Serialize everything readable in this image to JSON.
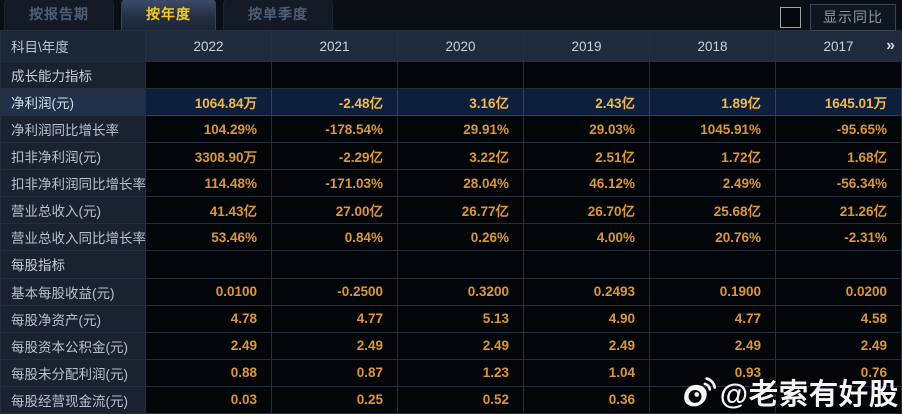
{
  "tabs": [
    {
      "id": "report-period",
      "label": "按报告期",
      "active": false
    },
    {
      "id": "annual",
      "label": "按年度",
      "active": true
    },
    {
      "id": "single-quarter",
      "label": "按单季度",
      "active": false
    }
  ],
  "controls": {
    "yoy_checkbox_checked": false,
    "yoy_button_label": "显示同比"
  },
  "table": {
    "corner_label": "科目\\年度",
    "years": [
      "2022",
      "2021",
      "2020",
      "2019",
      "2018",
      "2017"
    ],
    "more_icon": "»",
    "rows": [
      {
        "type": "section",
        "label": "成长能力指标"
      },
      {
        "type": "data",
        "highlight": true,
        "label": "净利润(元)",
        "values": [
          "1064.84万",
          "-2.48亿",
          "3.16亿",
          "2.43亿",
          "1.89亿",
          "1645.01万"
        ]
      },
      {
        "type": "data",
        "highlight": false,
        "label": "净利润同比增长率",
        "values": [
          "104.29%",
          "-178.54%",
          "29.91%",
          "29.03%",
          "1045.91%",
          "-95.65%"
        ]
      },
      {
        "type": "data",
        "highlight": false,
        "label": "扣非净利润(元)",
        "values": [
          "3308.90万",
          "-2.29亿",
          "3.22亿",
          "2.51亿",
          "1.72亿",
          "1.68亿"
        ]
      },
      {
        "type": "data",
        "highlight": false,
        "label": "扣非净利润同比增长率",
        "values": [
          "114.48%",
          "-171.03%",
          "28.04%",
          "46.12%",
          "2.49%",
          "-56.34%"
        ]
      },
      {
        "type": "data",
        "highlight": false,
        "label": "营业总收入(元)",
        "values": [
          "41.43亿",
          "27.00亿",
          "26.77亿",
          "26.70亿",
          "25.68亿",
          "21.26亿"
        ]
      },
      {
        "type": "data",
        "highlight": false,
        "label": "营业总收入同比增长率",
        "values": [
          "53.46%",
          "0.84%",
          "0.26%",
          "4.00%",
          "20.76%",
          "-2.31%"
        ]
      },
      {
        "type": "section",
        "label": "每股指标"
      },
      {
        "type": "data",
        "highlight": false,
        "label": "基本每股收益(元)",
        "values": [
          "0.0100",
          "-0.2500",
          "0.3200",
          "0.2493",
          "0.1900",
          "0.0200"
        ]
      },
      {
        "type": "data",
        "highlight": false,
        "label": "每股净资产(元)",
        "values": [
          "4.78",
          "4.77",
          "5.13",
          "4.90",
          "4.77",
          "4.58"
        ]
      },
      {
        "type": "data",
        "highlight": false,
        "label": "每股资本公积金(元)",
        "values": [
          "2.49",
          "2.49",
          "2.49",
          "2.49",
          "2.49",
          "2.49"
        ]
      },
      {
        "type": "data",
        "highlight": false,
        "label": "每股未分配利润(元)",
        "values": [
          "0.88",
          "0.87",
          "1.23",
          "1.04",
          "0.93",
          "0.76"
        ]
      },
      {
        "type": "data",
        "highlight": false,
        "label": "每股经营现金流(元)",
        "values": [
          "0.03",
          "0.25",
          "0.52",
          "0.36",
          "",
          ""
        ]
      }
    ]
  },
  "watermark": {
    "icon": "weibo-icon",
    "text": "@老索有好股"
  },
  "colors": {
    "accent_gold": "#f5c91d",
    "value_orange": "#dd9733",
    "highlight_value_gold": "#f2bb45",
    "highlight_row_bg": "#0d1f3a",
    "header_bg": "#1d2b3d",
    "label_col_bg": "#1a2230",
    "cell_bg": "#030609",
    "page_bg": "#0a0f17"
  }
}
